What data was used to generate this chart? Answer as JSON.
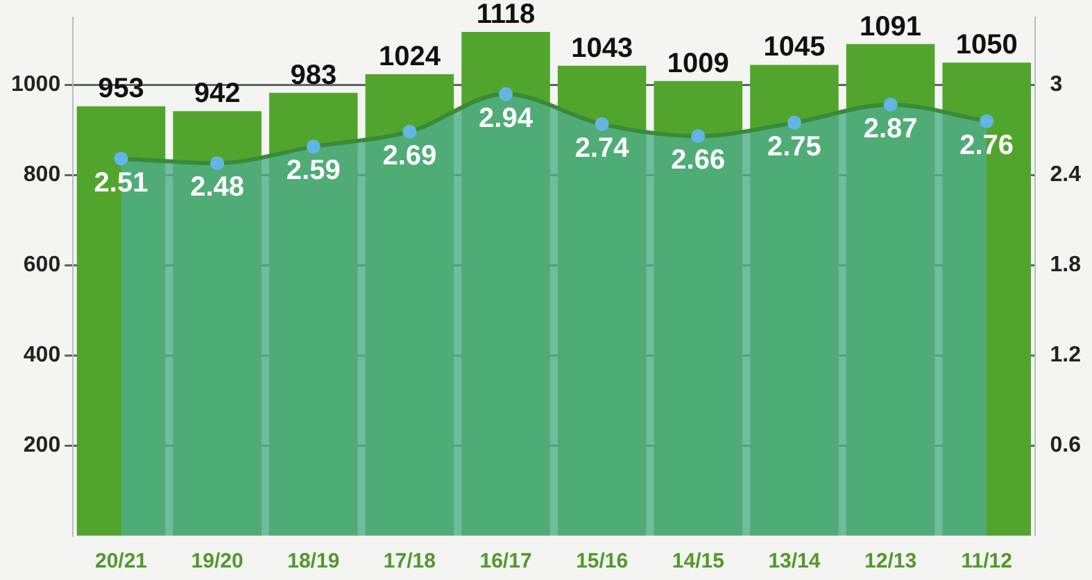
{
  "chart_data": {
    "type": "bar",
    "categories": [
      "20/21",
      "19/20",
      "18/19",
      "17/18",
      "16/17",
      "15/16",
      "14/15",
      "13/14",
      "12/13",
      "11/12"
    ],
    "series": [
      {
        "color": "#52a52c",
        "values": [
          953,
          942,
          983,
          1024,
          1118,
          1043,
          1009,
          1045,
          1091,
          1050
        ]
      },
      {
        "type": "area",
        "axis": "y2",
        "color": "#4fae8a",
        "marker": "circle",
        "values": [
          2.51,
          2.48,
          2.59,
          2.69,
          2.94,
          2.74,
          2.66,
          2.75,
          2.87,
          2.76
        ]
      }
    ],
    "ylim": [
      0,
      1150
    ],
    "yticks": [
      200,
      400,
      600,
      800,
      1000
    ],
    "y2lim": [
      0,
      3.45
    ],
    "y2ticks": [
      0.6,
      1.2,
      1.8,
      2.4,
      3
    ],
    "grid": "y",
    "legend": false,
    "data_labels": true
  }
}
